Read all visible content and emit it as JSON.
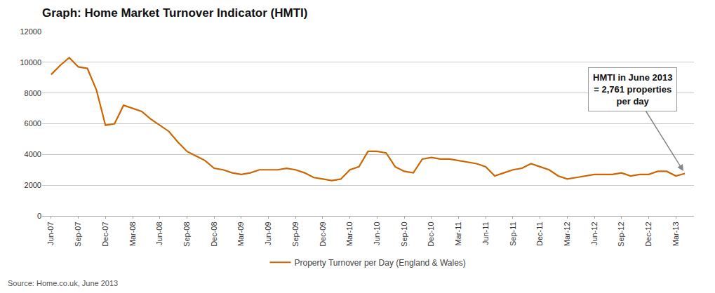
{
  "chart_data": {
    "type": "line",
    "title": "Graph: Home Market Turnover Indicator (HMTI)",
    "source": "Source: Home.co.uk, June 2013",
    "annotations": [
      "HMTI in June 2013\n= 2,761 properties\nper day"
    ],
    "categories": [
      "Jun-07",
      null,
      null,
      "Sep-07",
      null,
      null,
      "Dec-07",
      null,
      null,
      "Mar-08",
      null,
      null,
      "Jun-08",
      null,
      null,
      "Sep-08",
      null,
      null,
      "Dec-08",
      null,
      null,
      "Mar-09",
      null,
      null,
      "Jun-09",
      null,
      null,
      "Sep-09",
      null,
      null,
      "Dec-09",
      null,
      null,
      "Mar-10",
      null,
      null,
      "Jun-10",
      null,
      null,
      "Sep-10",
      null,
      null,
      "Dec-10",
      null,
      null,
      "Mar-11",
      null,
      null,
      "Jun-11",
      null,
      null,
      "Sep-11",
      null,
      null,
      "Dec-11",
      null,
      null,
      "Mar-12",
      null,
      null,
      "Jun-12",
      null,
      null,
      "Sep-12",
      null,
      null,
      "Dec-12",
      null,
      null,
      "Mar-13",
      null
    ],
    "series": [
      {
        "name": "Property Turnover per Day (England & Wales)",
        "color": "#CC6600",
        "values": [
          9200,
          9800,
          10300,
          9700,
          9600,
          8200,
          5900,
          6000,
          7200,
          7000,
          6800,
          6300,
          5900,
          5500,
          4800,
          4200,
          3900,
          3600,
          3100,
          3000,
          2800,
          2700,
          2800,
          3000,
          3000,
          3000,
          3100,
          3000,
          2800,
          2500,
          2400,
          2300,
          2400,
          3000,
          3200,
          4200,
          4200,
          4100,
          3200,
          2900,
          2800,
          3700,
          3800,
          3700,
          3700,
          3600,
          3500,
          3400,
          3200,
          2600,
          2800,
          3000,
          3100,
          3400,
          3200,
          3000,
          2600,
          2400,
          2500,
          2600,
          2700,
          2700,
          2700,
          2800,
          2600,
          2700,
          2700,
          2900,
          2900,
          2600,
          2761
        ]
      }
    ],
    "ylim": [
      0,
      12000
    ],
    "yticks": [
      0,
      2000,
      4000,
      6000,
      8000,
      10000,
      12000
    ],
    "grid": true,
    "legend": "bottom"
  }
}
